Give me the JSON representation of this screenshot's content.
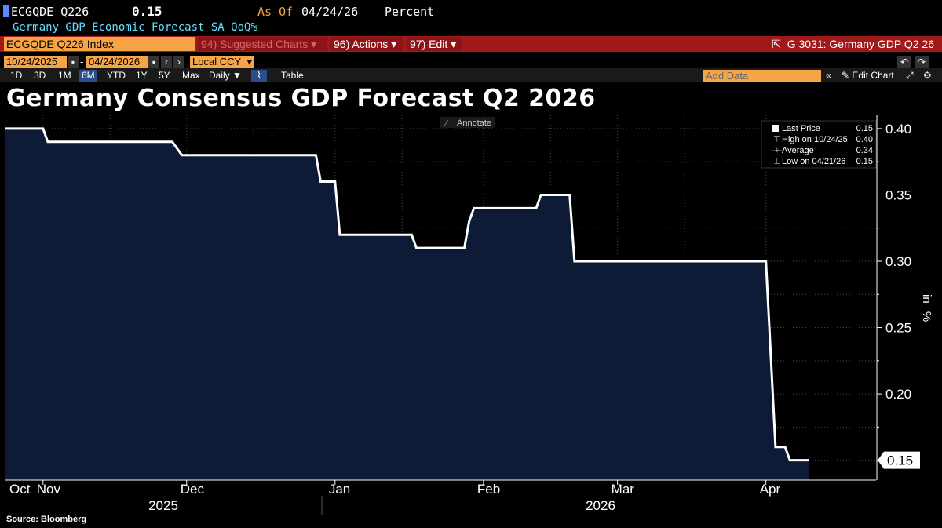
{
  "header": {
    "ticker": "ECGQDE Q226",
    "last_value": "0.15",
    "as_of_label": "As Of",
    "as_of_date": "04/24/26",
    "unit": "Percent",
    "description": "Germany GDP Economic Forecast SA QoQ%"
  },
  "toolbar": {
    "index_field": "ECGQDE Q226 Index",
    "suggested_charts": "Suggested Charts",
    "suggested_num": "94)",
    "actions": "Actions",
    "actions_num": "96)",
    "edit": "Edit",
    "edit_num": "97)",
    "chart_ref": "G 3031: Germany GDP Q2 26"
  },
  "range": {
    "start": "10/24/2025",
    "end": "04/24/2026",
    "currency": "Local CCY"
  },
  "periods": [
    "1D",
    "3D",
    "1M",
    "6M",
    "YTD",
    "1Y",
    "5Y",
    "Max"
  ],
  "selected_period": "6M",
  "frequency": "Daily",
  "table_label": "Table",
  "add_data_placeholder": "Add Data",
  "edit_chart_label": "Edit Chart",
  "annotate_label": "Annotate",
  "source": "Source: Bloomberg",
  "legend": {
    "last_label": "Last Price",
    "last_value": "0.15",
    "high_label": "High on 10/24/25",
    "high_value": "0.40",
    "avg_label": "Average",
    "avg_value": "0.34",
    "low_label": "Low on 04/21/26",
    "low_value": "0.15"
  },
  "colors": {
    "line": "#ffffff",
    "fill": "#0e1b36",
    "orange": "#f7a447",
    "red_bar": "#a0191b"
  },
  "chart_data": {
    "type": "area",
    "title": "Germany Consensus GDP Forecast Q2 2026",
    "ylabel": "%",
    "ylabel_prefix": "in",
    "ylim": [
      0.135,
      0.41
    ],
    "yticks": [
      0.15,
      0.2,
      0.25,
      0.3,
      0.35,
      0.4
    ],
    "ytick_labels": [
      "0.20",
      "0.25",
      "0.30",
      "0.35",
      "0.40"
    ],
    "last_value_label": "0.15",
    "x_range": [
      "2025-10-24",
      "2026-04-24"
    ],
    "month_ticks": [
      {
        "label": "Oct",
        "date": "2025-10-24"
      },
      {
        "label": "Nov",
        "date": "2025-11-01"
      },
      {
        "label": "Dec",
        "date": "2025-12-01"
      },
      {
        "label": "Jan",
        "date": "2026-01-01"
      },
      {
        "label": "Feb",
        "date": "2026-02-01"
      },
      {
        "label": "Mar",
        "date": "2026-03-01"
      },
      {
        "label": "Apr",
        "date": "2026-04-01"
      }
    ],
    "years": [
      "2025",
      "2026"
    ],
    "series": [
      {
        "points": [
          [
            "2025-10-24",
            0.4
          ],
          [
            "2025-11-01",
            0.4
          ],
          [
            "2025-11-02",
            0.39
          ],
          [
            "2025-11-28",
            0.39
          ],
          [
            "2025-11-30",
            0.38
          ],
          [
            "2025-12-28",
            0.38
          ],
          [
            "2025-12-29",
            0.36
          ],
          [
            "2026-01-01",
            0.36
          ],
          [
            "2026-01-02",
            0.32
          ],
          [
            "2026-01-17",
            0.32
          ],
          [
            "2026-01-18",
            0.31
          ],
          [
            "2026-01-28",
            0.31
          ],
          [
            "2026-01-29",
            0.33
          ],
          [
            "2026-01-30",
            0.34
          ],
          [
            "2026-02-12",
            0.34
          ],
          [
            "2026-02-13",
            0.35
          ],
          [
            "2026-02-19",
            0.35
          ],
          [
            "2026-02-20",
            0.3
          ],
          [
            "2026-04-01",
            0.3
          ],
          [
            "2026-04-03",
            0.16
          ],
          [
            "2026-04-05",
            0.16
          ],
          [
            "2026-04-06",
            0.15
          ],
          [
            "2026-04-10",
            0.15
          ]
        ]
      }
    ]
  }
}
